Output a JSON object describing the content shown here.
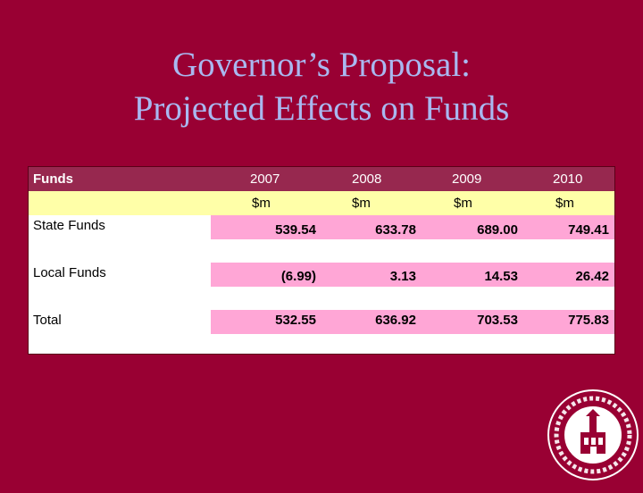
{
  "slide": {
    "title_line1": "Governor’s Proposal:",
    "title_line2": "Projected Effects on Funds"
  },
  "table": {
    "header": [
      "Funds",
      "2007",
      "2008",
      "2009",
      "2010"
    ],
    "units": [
      "",
      "$m",
      "$m",
      "$m",
      "$m"
    ],
    "rows": [
      {
        "label": "State Funds",
        "values": [
          "539.54",
          "633.78",
          "689.00",
          "749.41"
        ]
      },
      {
        "label": "Local Funds",
        "values": [
          "(6.99)",
          "3.13",
          "14.53",
          "26.42"
        ]
      },
      {
        "label": "Total",
        "values": [
          "532.55",
          "636.92",
          "703.53",
          "775.83"
        ]
      }
    ]
  },
  "colors": {
    "background": "#990033",
    "title": "#a9b8f0",
    "header_row": "#97284f",
    "unit_row": "#ffffa8",
    "value_band": "#ffa6d6"
  },
  "seal": {
    "icon": "university-seal-icon"
  }
}
